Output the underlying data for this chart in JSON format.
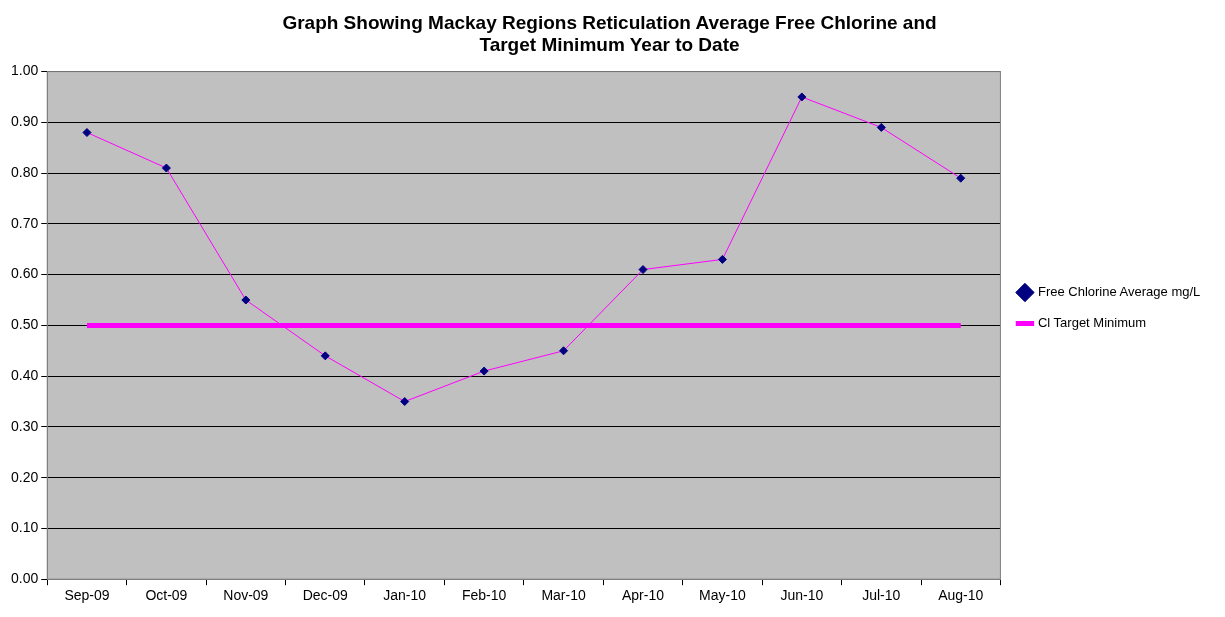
{
  "chart_data": {
    "type": "line",
    "title": "Graph Showing Mackay Regions Reticulation Average Free Chlorine and Target Minimum Year to Date",
    "categories": [
      "Sep-09",
      "Oct-09",
      "Nov-09",
      "Dec-09",
      "Jan-10",
      "Feb-10",
      "Mar-10",
      "Apr-10",
      "May-10",
      "Jun-10",
      "Jul-10",
      "Aug-10"
    ],
    "series": [
      {
        "name": "Free Chlorine Average mg/L",
        "color": "#ff00ff",
        "marker": "diamond",
        "values": [
          0.88,
          0.81,
          0.55,
          0.44,
          0.35,
          0.41,
          0.45,
          0.61,
          0.63,
          0.95,
          0.89,
          0.79
        ]
      },
      {
        "name": "Cl Target Minimum",
        "color": "#ff00ff",
        "marker": "none",
        "values": [
          0.5,
          0.5,
          0.5,
          0.5,
          0.5,
          0.5,
          0.5,
          0.5,
          0.5,
          0.5,
          0.5,
          0.5
        ]
      }
    ],
    "ylim": [
      0,
      1
    ],
    "yticks": [
      {
        "value": 0,
        "label": "0.00"
      },
      {
        "value": 0.1,
        "label": "0.10"
      },
      {
        "value": 0.2,
        "label": "0.20"
      },
      {
        "value": 0.3,
        "label": "0.30"
      },
      {
        "value": 0.4,
        "label": "0.40"
      },
      {
        "value": 0.5,
        "label": "0.50"
      },
      {
        "value": 0.6,
        "label": "0.60"
      },
      {
        "value": 0.7,
        "label": "0.70"
      },
      {
        "value": 0.8,
        "label": "0.80"
      },
      {
        "value": 0.9,
        "label": "0.90"
      },
      {
        "value": 1,
        "label": "1.00"
      }
    ],
    "grid": "y",
    "legend": "right"
  }
}
